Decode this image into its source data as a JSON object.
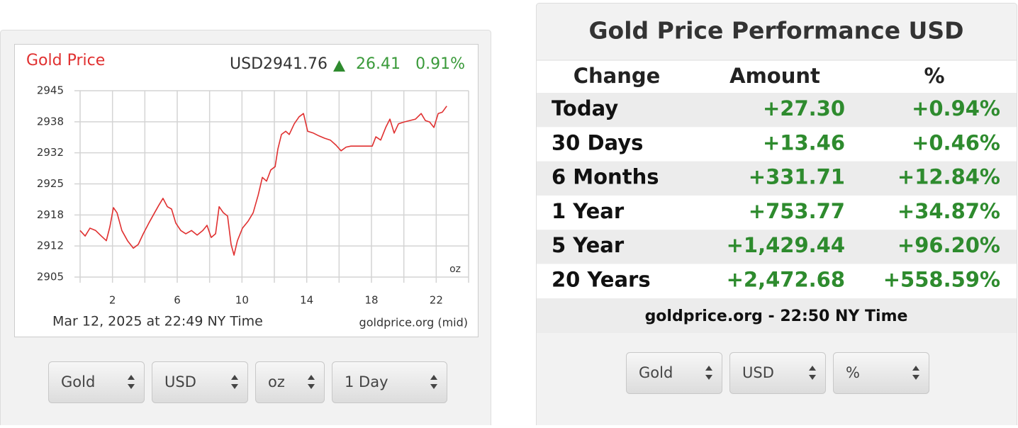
{
  "chart_data": {
    "type": "line",
    "title": "Gold Price",
    "price": "USD2941.76",
    "change": "26.41",
    "change_pct": "0.91%",
    "unit": "oz",
    "timestamp": "Mar 12, 2025 at 22:49 NY Time",
    "source": "goldprice.org (mid)",
    "color": "#e03030",
    "x": [
      0.0,
      0.31,
      0.61,
      0.96,
      1.31,
      1.62,
      1.84,
      2.06,
      2.28,
      2.58,
      2.93,
      3.29,
      3.59,
      3.9,
      4.25,
      4.6,
      4.86,
      5.12,
      5.39,
      5.65,
      5.91,
      6.22,
      6.53,
      6.88,
      7.23,
      7.58,
      7.84,
      8.1,
      8.37,
      8.59,
      8.85,
      9.11,
      9.33,
      9.51,
      9.72,
      10.03,
      10.38,
      10.69,
      11.0,
      11.26,
      11.52,
      11.78,
      12.05,
      12.22,
      12.44,
      12.7,
      12.92,
      13.23,
      13.53,
      13.8,
      14.06,
      14.41,
      14.76,
      15.11,
      15.46,
      15.81,
      16.12,
      16.43,
      16.73,
      17.08,
      17.43,
      17.78,
      18.05,
      18.27,
      18.57,
      18.88,
      19.14,
      19.4,
      19.67,
      20.02,
      20.37,
      20.72,
      21.07,
      21.33,
      21.59,
      21.86,
      22.12,
      22.38,
      22.65
    ],
    "values": [
      2915.0,
      2913.8,
      2915.5,
      2915.0,
      2913.8,
      2912.8,
      2915.8,
      2919.9,
      2918.8,
      2915.0,
      2912.8,
      2911.2,
      2912.0,
      2914.3,
      2916.6,
      2918.8,
      2920.4,
      2921.9,
      2920.1,
      2919.6,
      2916.6,
      2915.0,
      2914.3,
      2915.0,
      2914.0,
      2915.0,
      2916.1,
      2913.5,
      2914.3,
      2920.1,
      2918.8,
      2918.1,
      2912.0,
      2909.7,
      2912.8,
      2915.5,
      2917.0,
      2918.8,
      2922.6,
      2926.4,
      2925.6,
      2928.0,
      2928.7,
      2932.5,
      2935.6,
      2936.3,
      2935.6,
      2937.9,
      2939.4,
      2940.1,
      2936.3,
      2935.9,
      2935.3,
      2934.8,
      2934.4,
      2933.3,
      2932.1,
      2932.9,
      2933.1,
      2933.1,
      2933.1,
      2933.1,
      2933.1,
      2935.1,
      2934.4,
      2937.1,
      2938.9,
      2935.9,
      2937.9,
      2938.3,
      2938.6,
      2938.9,
      2940.1,
      2938.6,
      2938.3,
      2937.1,
      2940.1,
      2940.4,
      2941.7
    ],
    "xlim": [
      0,
      24
    ],
    "xticks": [
      2,
      6,
      10,
      14,
      18,
      22
    ],
    "xgrid": [
      0,
      4,
      8,
      12,
      16,
      20,
      24
    ],
    "ylim": [
      2905,
      2945
    ],
    "yticks": [
      2905,
      {
        "value": 2911.67,
        "label": "2912"
      },
      {
        "value": 2918.33,
        "label": "2918"
      },
      2925,
      {
        "value": 2931.67,
        "label": "2932"
      },
      {
        "value": 2938.33,
        "label": "2938"
      },
      2945
    ],
    "grid": true
  },
  "chart_controls": [
    "Gold",
    "USD",
    "oz",
    "1 Day"
  ],
  "performance": {
    "title": "Gold Price Performance USD",
    "columns": [
      "Change",
      "Amount",
      "%"
    ],
    "rows": [
      [
        "Today",
        "+27.30",
        "+0.94%"
      ],
      [
        "30 Days",
        "+13.46",
        "+0.46%"
      ],
      [
        "6 Months",
        "+331.71",
        "+12.84%"
      ],
      [
        "1 Year",
        "+753.77",
        "+34.87%"
      ],
      [
        "5 Year",
        "+1,429.44",
        "+96.20%"
      ],
      [
        "20 Years",
        "+2,472.68",
        "+558.59%"
      ]
    ],
    "footer": "goldprice.org - 22:50 NY Time"
  },
  "performance_controls": [
    "Gold",
    "USD",
    "%"
  ]
}
